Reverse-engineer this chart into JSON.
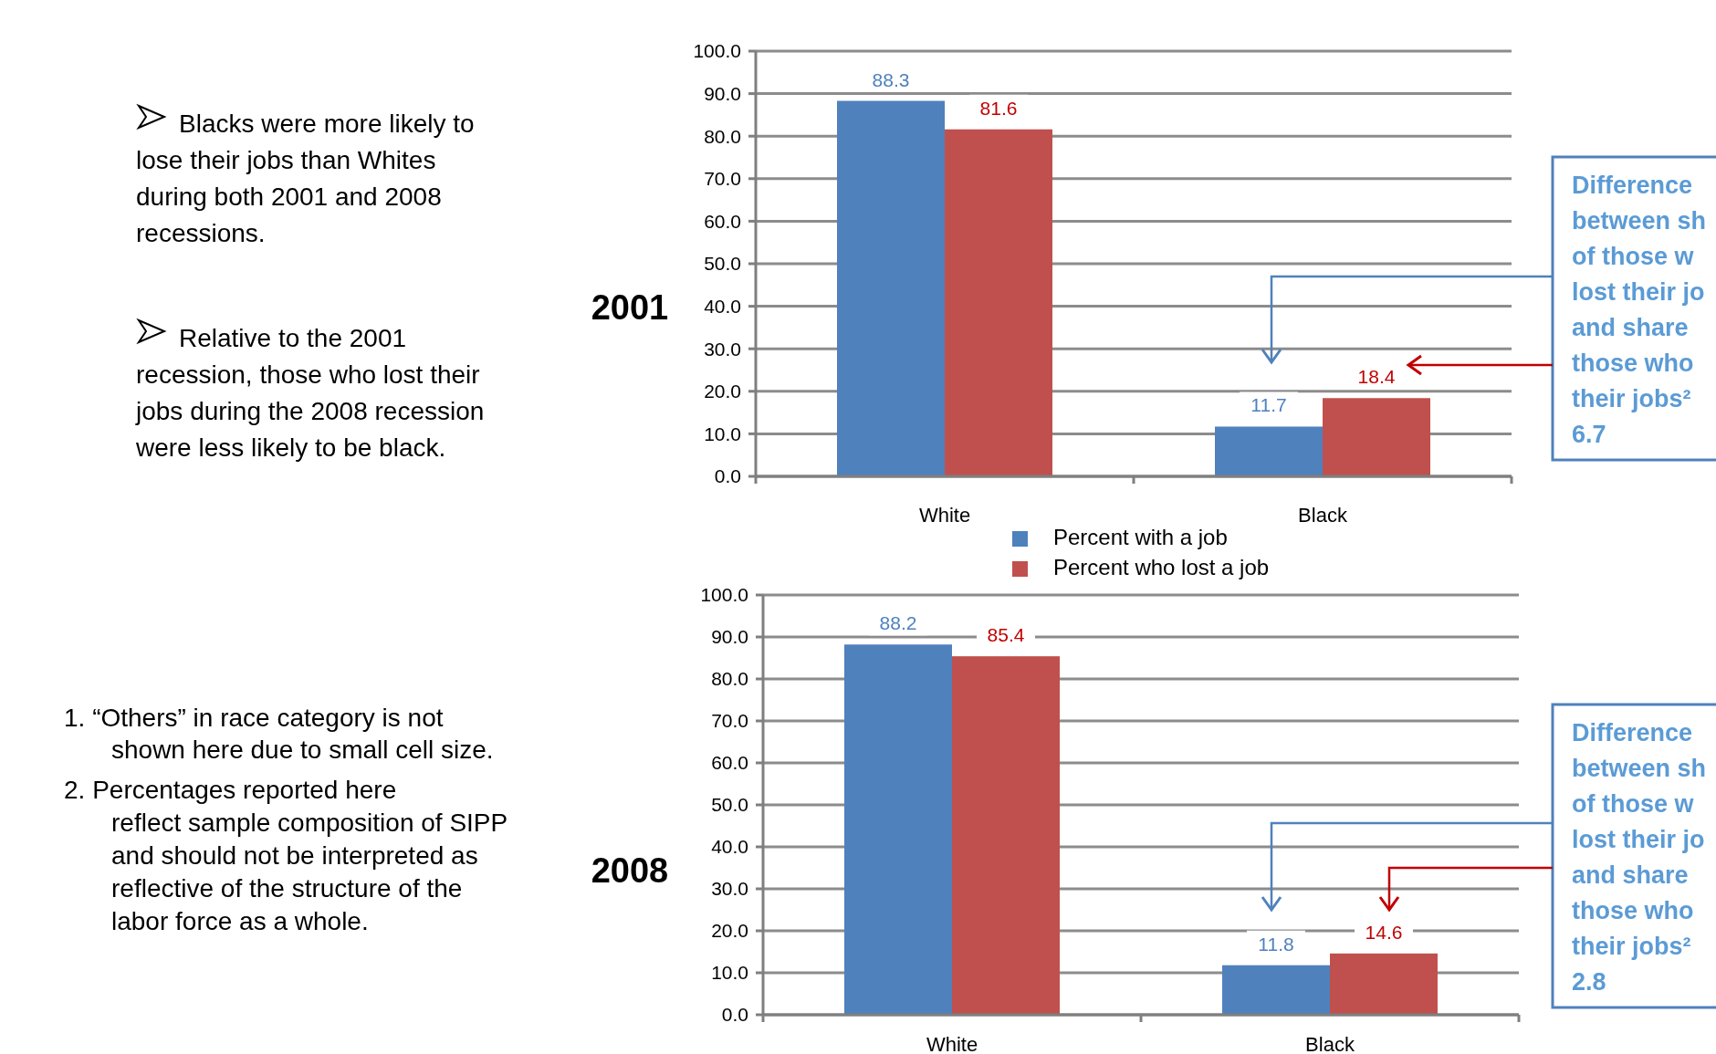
{
  "chart_data": [
    {
      "type": "bar",
      "title": "2001",
      "categories": [
        "White",
        "Black"
      ],
      "series": [
        {
          "name": "Percent with a job",
          "color": "#4f81bd",
          "values": [
            88.3,
            11.7
          ]
        },
        {
          "name": "Percent who lost a job",
          "color": "#c0504d",
          "values": [
            81.6,
            18.4
          ]
        }
      ],
      "ylim": [
        0,
        100
      ],
      "yticks": [
        {
          "value": 0,
          "label": "0.0"
        },
        {
          "value": 10,
          "label": "10.0"
        },
        {
          "value": 20,
          "label": "20.0"
        },
        {
          "value": 30,
          "label": "30.0"
        },
        {
          "value": 40,
          "label": "40.0"
        },
        {
          "value": 50,
          "label": "50.0"
        },
        {
          "value": 60,
          "label": "60.0"
        },
        {
          "value": 70,
          "label": "70.0"
        },
        {
          "value": 80,
          "label": "80.0"
        },
        {
          "value": 90,
          "label": "90.0"
        },
        {
          "value": 100,
          "label": "100.0"
        }
      ],
      "grid": "y",
      "legend": "bottom",
      "data_labels": true,
      "annotations": [
        "Blacks were more likely to\nlose their jobs than Whites\nduring both 2001 and 2008\nrecessions.",
        "Relative to the 2001\nrecession, those who lost their\njobs during the 2008 recession\nwere less likely to be black.",
        "Difference\nbetween sh\nof those w\nlost their jo\nand share\nthose who\ntheir jobs²\n6.7"
      ]
    },
    {
      "type": "bar",
      "title": "2008",
      "categories": [
        "White",
        "Black"
      ],
      "series": [
        {
          "color": "#4f81bd",
          "values": [
            88.2,
            11.8
          ]
        },
        {
          "color": "#c0504d",
          "values": [
            85.4,
            14.6
          ]
        }
      ],
      "ylim": [
        0,
        100
      ],
      "yticks": [
        {
          "value": 0,
          "label": "0.0"
        },
        {
          "value": 10,
          "label": "10.0"
        },
        {
          "value": 20,
          "label": "20.0"
        },
        {
          "value": 30,
          "label": "30.0"
        },
        {
          "value": 40,
          "label": "40.0"
        },
        {
          "value": 50,
          "label": "50.0"
        },
        {
          "value": 60,
          "label": "60.0"
        },
        {
          "value": 70,
          "label": "70.0"
        },
        {
          "value": 80,
          "label": "80.0"
        },
        {
          "value": 90,
          "label": "90.0"
        },
        {
          "value": 100,
          "label": "100.0"
        }
      ],
      "grid": "y",
      "data_labels": true,
      "annotations": [
        "1.  “Others” in race  category is not\nshown here due to small cell size.",
        "2.  Percentages reported here\nreflect sample composition of SIPP\nand should  not be interpreted as\nreflective of the structure of the\nlabor force as a whole.",
        "Difference\nbetween sh\nof those w\nlost their jo\nand share\nthose who\ntheir jobs²\n2.8"
      ]
    }
  ]
}
